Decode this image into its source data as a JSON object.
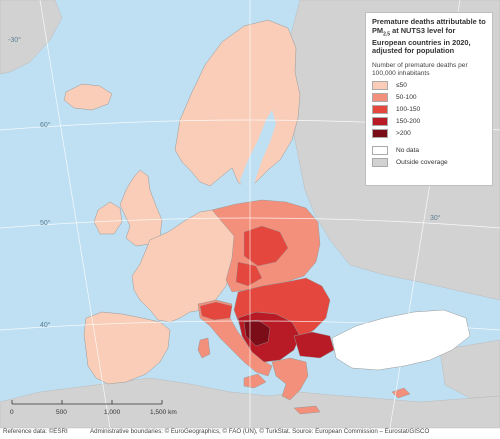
{
  "legend": {
    "title_pre": "Premature deaths attributable to PM",
    "title_sub": "2.5",
    "title_post": " at NUTS3 level for European countries in 2020, adjusted for population",
    "subtitle": "Number of premature deaths per 100,000 inhabitants",
    "classes": [
      {
        "label": "≤50",
        "color": "#f9cdb8"
      },
      {
        "label": "50-100",
        "color": "#f3907c"
      },
      {
        "label": "100-150",
        "color": "#e3473d"
      },
      {
        "label": "150-200",
        "color": "#b81b26"
      },
      {
        "label": ">200",
        "color": "#7b0d19"
      }
    ],
    "extra": [
      {
        "label": "No data",
        "color": "#ffffff"
      },
      {
        "label": "Outside coverage",
        "color": "#d2d2d2"
      }
    ]
  },
  "graticule": {
    "lat_labels": [
      "60°",
      "50°",
      "40°"
    ],
    "lon_labels": [
      "-30°",
      "30°"
    ]
  },
  "scale": {
    "ticks": [
      "0",
      "500",
      "1,000",
      "1,500 km"
    ]
  },
  "footer": {
    "reference": "Reference data: ©ESRI",
    "admin": "Administrative boundaries: © EuroGeographics, © FAO (UN), © TurkStat. Source: European Commission – Eurostat/GISCO"
  },
  "colors": {
    "sea": "#bfe0f2",
    "outside": "#d2d2d2",
    "graticule": "#ffffff",
    "border": "#888888"
  }
}
